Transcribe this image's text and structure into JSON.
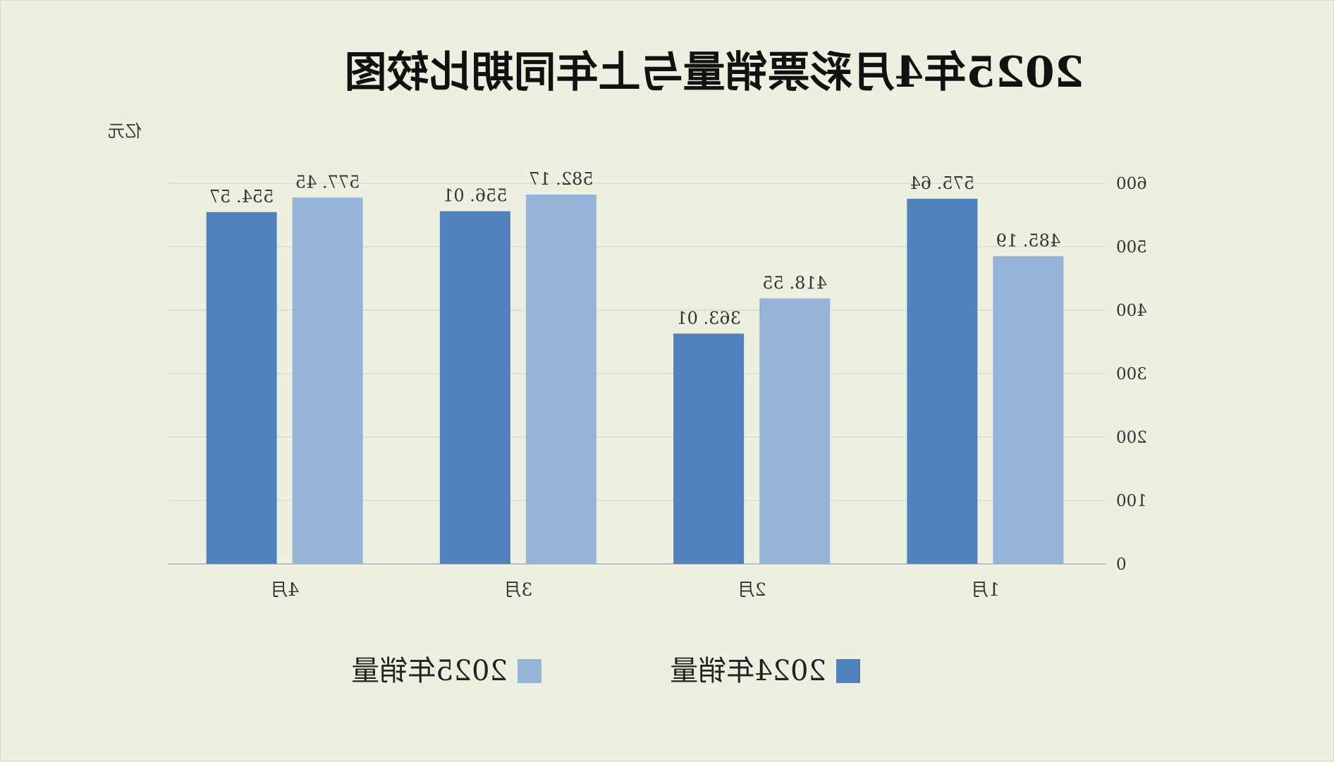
{
  "chart_data": {
    "type": "bar",
    "title": "2025年4月彩票销量与上年同期比较图",
    "unit_label": "亿元",
    "categories": [
      "1月",
      "2月",
      "3月",
      "4月"
    ],
    "series": [
      {
        "name": "2025年销量",
        "color": "#95b3d7",
        "values": [
          485.19,
          418.55,
          582.17,
          577.45
        ],
        "labels": [
          "485. 19",
          "418. 55",
          "582. 17",
          "577. 45"
        ]
      },
      {
        "name": "2024年销量",
        "color": "#4f81bd",
        "values": [
          575.64,
          363.01,
          556.01,
          554.57
        ],
        "labels": [
          "575. 64",
          "363. 01",
          "556. 01",
          "554. 57"
        ]
      }
    ],
    "ylim": [
      0,
      600
    ],
    "yticks": [
      0,
      100,
      200,
      300,
      400,
      500,
      600
    ],
    "grid": true,
    "legend_position": "bottom",
    "orientation": "mirrored"
  }
}
